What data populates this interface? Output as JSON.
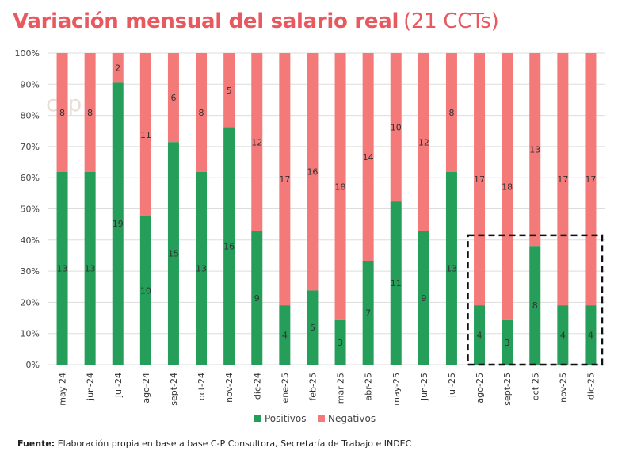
{
  "title": {
    "main": "Variación mensual del salario real",
    "sub": "(21 CCTs)"
  },
  "watermark": "c-p",
  "footer": {
    "label": "Fuente:",
    "text": " Elaboración propia en base a base C-P Consultora, Secretaría de Trabajo e INDEC"
  },
  "colors": {
    "positivos": "#249e59",
    "negativos": "#f47a7a",
    "grid": "#dddddd"
  },
  "chart_data": {
    "type": "bar",
    "stacked": true,
    "normalized": true,
    "categories": [
      "may-24",
      "jun-24",
      "jul-24",
      "ago-24",
      "sept-24",
      "oct-24",
      "nov-24",
      "dic-24",
      "ene-25",
      "feb-25",
      "mar-25",
      "abr-25",
      "may-25",
      "jun-25",
      "jul-25",
      "ago-25",
      "sept-25",
      "oct-25",
      "nov-25",
      "dic-25"
    ],
    "series": [
      {
        "name": "Positivos",
        "values": [
          13,
          13,
          19,
          10,
          15,
          13,
          16,
          9,
          4,
          5,
          3,
          7,
          11,
          9,
          13,
          4,
          3,
          8,
          4,
          4
        ]
      },
      {
        "name": "Negativos",
        "values": [
          8,
          8,
          2,
          11,
          6,
          8,
          5,
          12,
          17,
          16,
          18,
          14,
          10,
          12,
          8,
          17,
          18,
          13,
          17,
          17
        ]
      }
    ],
    "ylim": [
      0,
      100
    ],
    "y_ticks": [
      "0%",
      "10%",
      "20%",
      "30%",
      "40%",
      "50%",
      "60%",
      "70%",
      "80%",
      "90%",
      "100%"
    ],
    "legend_position": "bottom",
    "highlight_box": {
      "from": "ago-25",
      "to": "dic-25",
      "style": "dashed"
    }
  }
}
